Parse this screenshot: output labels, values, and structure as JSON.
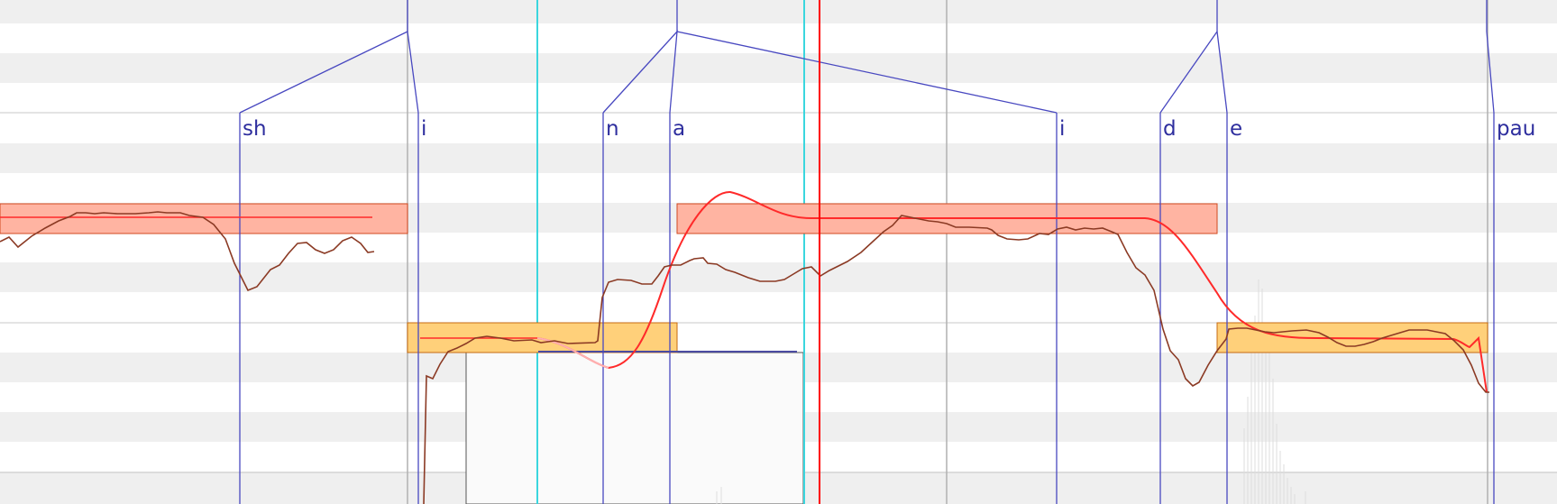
{
  "phonemes": [
    {
      "label": "sh"
    },
    {
      "label": "i"
    },
    {
      "label": "n"
    },
    {
      "label": "a"
    },
    {
      "label": "i"
    },
    {
      "label": "d"
    },
    {
      "label": "e"
    },
    {
      "label": "pau"
    }
  ],
  "colors": {
    "row_stripe": "#efefef",
    "background": "#ffffff",
    "phoneme_line": "#4040b8",
    "note_high_fill": "#ffb4a2",
    "note_high_border": "#d04a20",
    "note_low_fill": "#ffd07a",
    "note_low_border": "#c46a10",
    "pitch_curve": "#8b3a24",
    "rendered_pitch": "#ff2a2a",
    "selection_marker": "#3ad6de",
    "playhead": "#ff0000"
  },
  "icons": {
    "phoneme_marker": "vertical-line-marker",
    "playhead": "red-vertical-line"
  }
}
